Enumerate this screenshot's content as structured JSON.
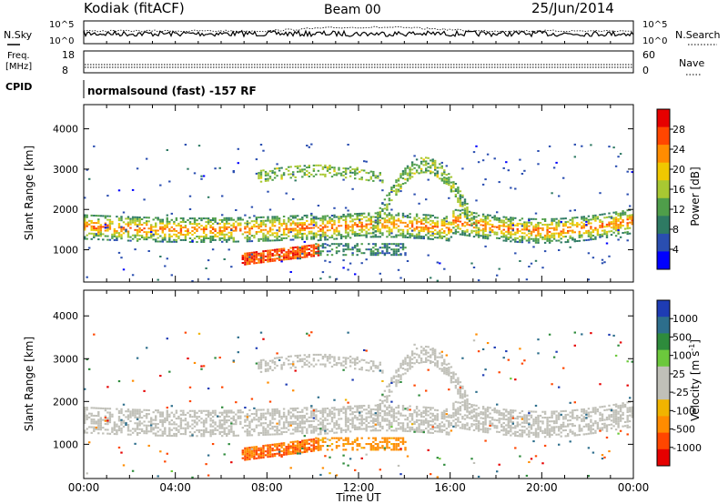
{
  "header": {
    "station": "Kodiak (fitACF)",
    "beam": "Beam 00",
    "date": "25/Jun/2014"
  },
  "panels": {
    "top": {
      "left_label": "N.Sky",
      "left_ticks": [
        "10^5",
        "10^0"
      ],
      "right_label": "N.Search",
      "right_ticks": [
        "10^5",
        "10^0"
      ]
    },
    "freq": {
      "left_label_1": "Freq.",
      "left_label_2": "[MHz]",
      "left_ticks": [
        "18",
        "8"
      ],
      "right_label": "Nave",
      "right_ticks": [
        "60",
        "0"
      ]
    },
    "cpid": {
      "label": "CPID",
      "mode": "normalsound (fast) -157 RF"
    }
  },
  "chart_data": [
    {
      "type": "heatmap",
      "name": "power",
      "ylabel": "Slant Range [km]",
      "ylim": [
        200,
        4600
      ],
      "yticks": [
        "1000",
        "2000",
        "3000",
        "4000"
      ],
      "xticks": [
        "00:00",
        "04:00",
        "08:00",
        "12:00",
        "16:00",
        "20:00",
        "00:00"
      ],
      "colorbar": {
        "label": "Power [dB]",
        "ticks": [
          "4",
          "8",
          "12",
          "16",
          "20",
          "24",
          "28"
        ],
        "colors": [
          "#0000ff",
          "#2a4eb0",
          "#2e7a63",
          "#4f9e4a",
          "#a8c832",
          "#f0c800",
          "#ff8c00",
          "#ff4600",
          "#e60000"
        ]
      },
      "features": [
        {
          "kind": "band",
          "start_h": 0.0,
          "end_h": 10.0,
          "range_km": [
            1300,
            1900
          ],
          "level_db": 18
        },
        {
          "kind": "band",
          "start_h": 7.0,
          "end_h": 10.2,
          "range_km": [
            600,
            1100
          ],
          "level_db": 28
        },
        {
          "kind": "band",
          "start_h": 10.0,
          "end_h": 14.0,
          "range_km": [
            900,
            1300
          ],
          "level_db": 8
        },
        {
          "kind": "arc",
          "start_h": 12.5,
          "end_h": 17.0,
          "peak_range_km": 3100,
          "level_db": 16
        },
        {
          "kind": "band",
          "start_h": 16.0,
          "end_h": 24.0,
          "range_km": [
            1300,
            2100
          ],
          "level_db": 14
        }
      ]
    },
    {
      "type": "heatmap",
      "name": "velocity",
      "ylabel": "Slant Range [km]",
      "ylim": [
        200,
        4600
      ],
      "yticks": [
        "1000",
        "2000",
        "3000",
        "4000"
      ],
      "xticks": [
        "00:00",
        "04:00",
        "08:00",
        "12:00",
        "16:00",
        "20:00",
        "00:00"
      ],
      "xlabel": "Time UT",
      "colorbar": {
        "label": "Velocity [m s",
        "label_exponent": "-1",
        "label_close": "]",
        "ticks": [
          "1000",
          "500",
          "100",
          "25",
          "-25",
          "-100",
          "-500",
          "-1000"
        ],
        "colors": [
          "#1e3cb4",
          "#2d6e8c",
          "#2e8b3c",
          "#6cc83c",
          "#c0c0b8",
          "#c0c0b8",
          "#f0b400",
          "#ff8c00",
          "#ff4600",
          "#e60000"
        ]
      },
      "features": [
        {
          "kind": "ground_scatter",
          "start_h": 0.0,
          "end_h": 24.0,
          "range_km": [
            1300,
            2000
          ]
        },
        {
          "kind": "band",
          "start_h": 7.0,
          "end_h": 10.2,
          "range_km": [
            600,
            1100
          ],
          "velocity_ms": -300
        },
        {
          "kind": "band",
          "start_h": 10.0,
          "end_h": 14.0,
          "range_km": [
            900,
            1200
          ],
          "velocity_ms": -150
        }
      ]
    }
  ]
}
